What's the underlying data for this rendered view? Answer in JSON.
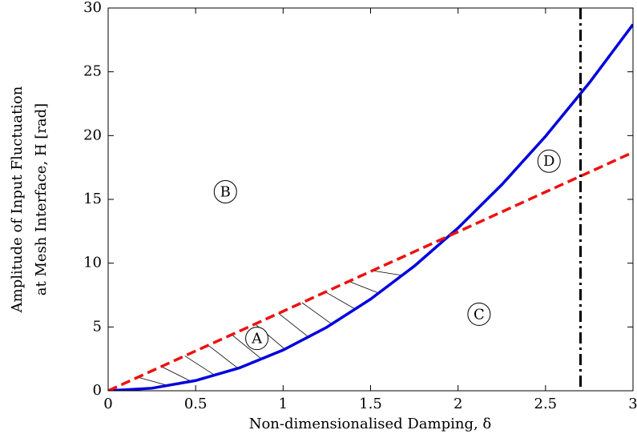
{
  "chart_data": {
    "type": "line",
    "xlabel": "Non-dimensionalised Damping, δ",
    "ylabel": [
      "Amplitude of Input Fluctuation",
      "at Mesh Interface, H [rad]"
    ],
    "x": [
      0,
      0.25,
      0.5,
      0.75,
      1,
      1.25,
      1.5,
      1.75,
      2,
      2.25,
      2.5,
      2.75,
      3
    ],
    "series": [
      {
        "color": "#0000dd",
        "style": "solid",
        "values": [
          0,
          0.2,
          0.8,
          1.79,
          3.19,
          4.98,
          7.18,
          9.77,
          12.76,
          16.15,
          19.94,
          24.13,
          28.71
        ]
      },
      {
        "color": "#ee1111",
        "style": "dashed",
        "values": [
          0,
          1.56,
          3.12,
          4.67,
          6.23,
          7.79,
          9.35,
          10.9,
          12.46,
          14.02,
          15.58,
          17.13,
          18.69
        ]
      }
    ],
    "vline": {
      "x": 2.7,
      "color": "#000000",
      "style": "dashdot"
    },
    "annotations": [
      {
        "text": "A",
        "x": 0.85,
        "y": 4.1
      },
      {
        "text": "B",
        "x": 0.67,
        "y": 15.6
      },
      {
        "text": "C",
        "x": 2.12,
        "y": 6.0
      },
      {
        "text": "D",
        "x": 2.52,
        "y": 18.0
      }
    ],
    "xlim": [
      0,
      3
    ],
    "ylim": [
      0,
      30
    ],
    "xticks": [
      0,
      0.5,
      1,
      1.5,
      2,
      2.5,
      3
    ],
    "yticks": [
      0,
      5,
      10,
      15,
      20,
      25,
      30
    ]
  }
}
